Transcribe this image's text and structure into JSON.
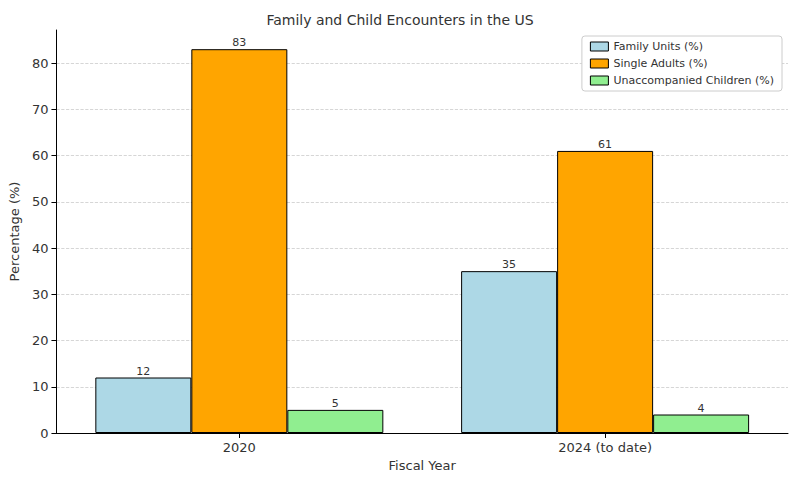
{
  "chart_data": {
    "type": "bar",
    "title": "Family and Child Encounters in the US",
    "x_label": "Fiscal Year",
    "y_label": "Percentage (%)",
    "categories": [
      "2020",
      "2024 (to date)"
    ],
    "series": [
      {
        "name": "Family Units (%)",
        "color": "#add8e6",
        "values": [
          12,
          35
        ]
      },
      {
        "name": "Single Adults (%)",
        "color": "#ffa500",
        "values": [
          83,
          61
        ]
      },
      {
        "name": "Unaccompanied Children (%)",
        "color": "#90ee90",
        "values": [
          5,
          4
        ]
      }
    ],
    "ylim": [
      0,
      87.15
    ],
    "yticks": [
      0,
      10,
      20,
      30,
      40,
      50,
      60,
      70,
      80
    ],
    "grid": true,
    "legend": "upper right",
    "data_labels": true
  }
}
